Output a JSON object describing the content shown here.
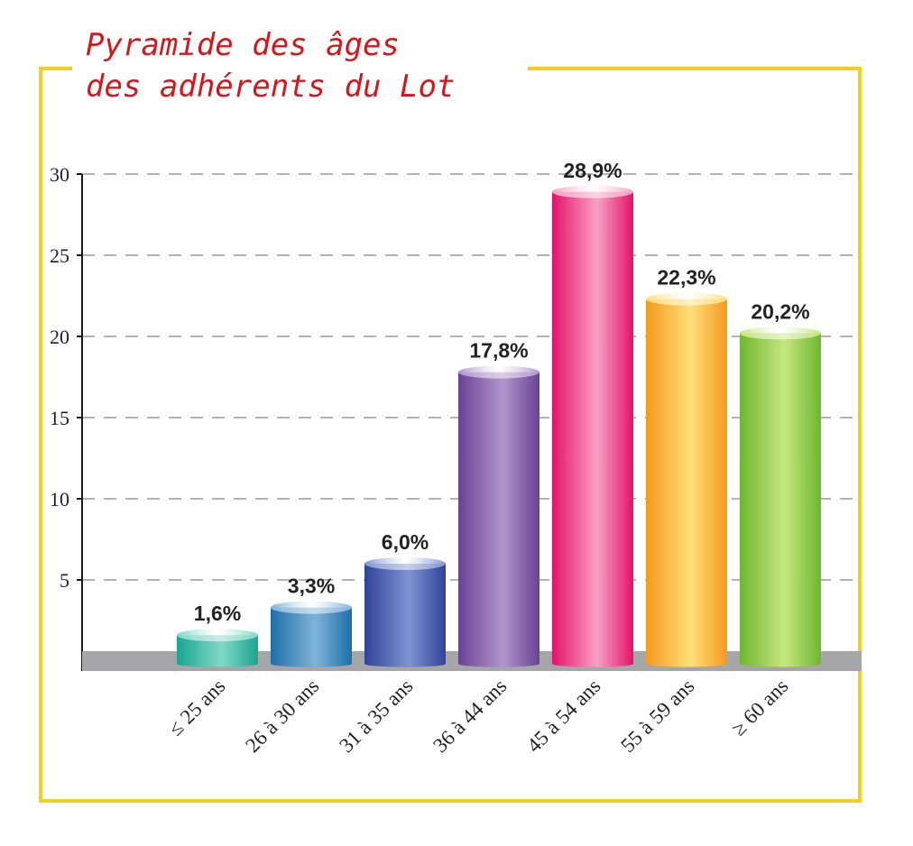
{
  "header": {
    "title_line1": "Pyramide des âges",
    "title_line2": "des adhérents du Lot"
  },
  "colors": {
    "frame": "#f2cf1f",
    "title": "#d4171d",
    "baseline": "#a6a6a8"
  },
  "chart_data": {
    "type": "bar",
    "title": "Pyramide des âges des adhérents du Lot",
    "categories": [
      "≤ 25 ans",
      "26 à 30 ans",
      "31 à 35 ans",
      "36 à 44 ans",
      "45 à 54 ans",
      "55 à 59 ans",
      "≥ 60 ans"
    ],
    "values": [
      1.6,
      3.3,
      6.0,
      17.8,
      28.9,
      22.3,
      20.2
    ],
    "data_labels": [
      "1,6%",
      "3,3%",
      "6,0%",
      "17,8%",
      "28,9%",
      "22,3%",
      "20,2%"
    ],
    "bar_colors": [
      [
        "#1aa68f",
        "#7fd9c6"
      ],
      [
        "#1e6ea8",
        "#7fb3d9"
      ],
      [
        "#2f4499",
        "#7f93d1"
      ],
      [
        "#6a4294",
        "#b295cc"
      ],
      [
        "#e5126b",
        "#f7a1c2"
      ],
      [
        "#f39a1e",
        "#ffe07a"
      ],
      [
        "#6cb82f",
        "#c7e67f"
      ]
    ],
    "yticks": [
      5,
      10,
      15,
      20,
      25,
      30
    ],
    "ylim": [
      0,
      30
    ],
    "grid": "dashed horizontal",
    "xlabel": "",
    "ylabel": ""
  }
}
